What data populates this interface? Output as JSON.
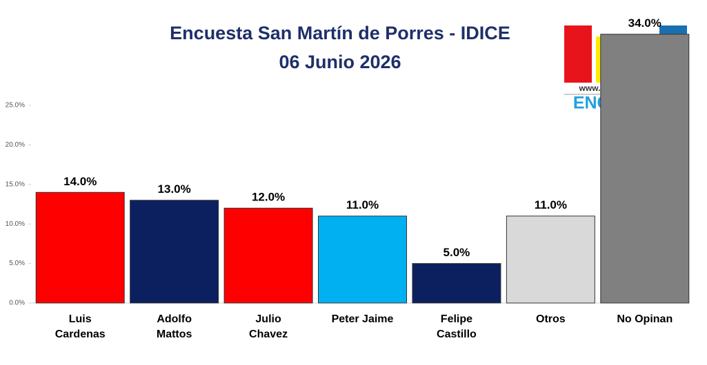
{
  "chart_data": {
    "type": "bar",
    "title": "Encuesta San Martín de Porres - IDICE",
    "subtitle": "06 Junio 2026",
    "categories": [
      "Luis Cardenas",
      "Adolfo Mattos",
      "Julio Chavez",
      "Peter Jaime",
      "Felipe Castillo",
      "Otros",
      "No Opinan"
    ],
    "values": [
      14,
      13,
      12,
      11,
      5,
      11,
      34
    ],
    "value_labels": [
      "14.0%",
      "13.0%",
      "12.0%",
      "11.0%",
      "5.0%",
      "11.0%",
      "34.0%"
    ],
    "colors": [
      "#ff0000",
      "#0c1f5e",
      "#ff0000",
      "#00b0f0",
      "#0c1f5e",
      "#d9d9d9",
      "#808080"
    ],
    "ylim": [
      0,
      25
    ],
    "yticks": [
      {
        "value": 0,
        "label": "0.0%"
      },
      {
        "value": 5,
        "label": "5.0%"
      },
      {
        "value": 10,
        "label": "10.0%"
      },
      {
        "value": 15,
        "label": "15.0%"
      },
      {
        "value": 20,
        "label": "20.0%"
      },
      {
        "value": 25,
        "label": "25.0%"
      }
    ],
    "grid": false
  },
  "logo": {
    "url": "www.encuestas.com.pe",
    "name": "ENCUESTAS"
  }
}
